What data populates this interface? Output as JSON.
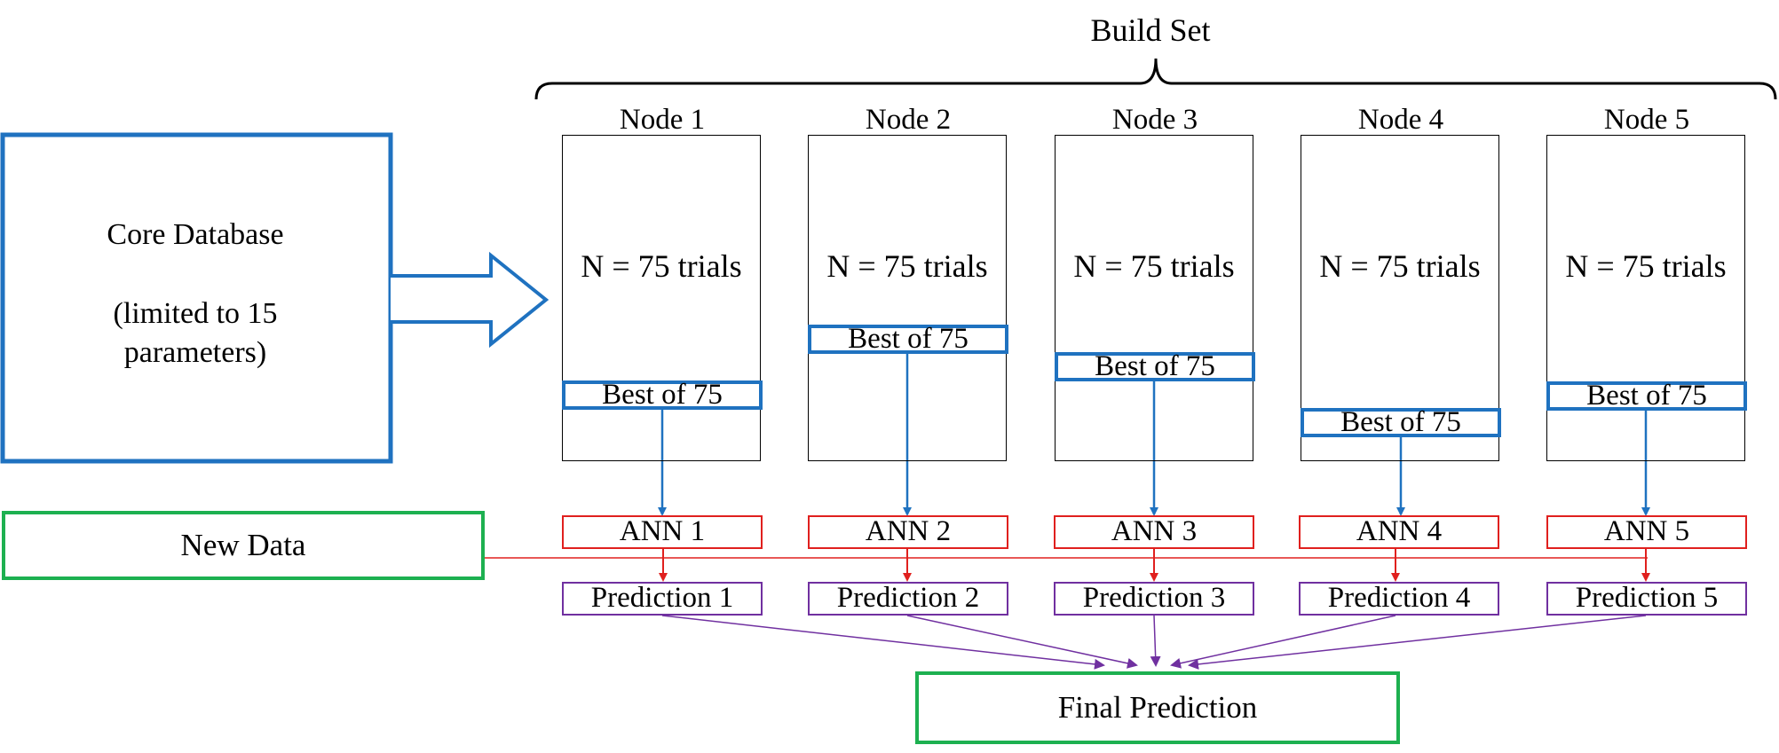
{
  "build_set": {
    "label": "Build Set"
  },
  "core_database": {
    "title": "Core Database",
    "subtitle": "(limited to 15 parameters)"
  },
  "new_data": {
    "label": "New Data"
  },
  "final_prediction": {
    "label": "Final Prediction"
  },
  "nodes": [
    {
      "title": "Node 1",
      "trials": "N = 75 trials",
      "best": "Best of 75",
      "ann": "ANN 1",
      "prediction": "Prediction 1"
    },
    {
      "title": "Node 2",
      "trials": "N = 75 trials",
      "best": "Best of 75",
      "ann": "ANN 2",
      "prediction": "Prediction 2"
    },
    {
      "title": "Node 3",
      "trials": "N = 75 trials",
      "best": "Best of 75",
      "ann": "ANN 3",
      "prediction": "Prediction 3"
    },
    {
      "title": "Node 4",
      "trials": "N = 75 trials",
      "best": "Best of 75",
      "ann": "ANN 4",
      "prediction": "Prediction 4"
    },
    {
      "title": "Node 5",
      "trials": "N = 75 trials",
      "best": "Best of 75",
      "ann": "ANN 5",
      "prediction": "Prediction 5"
    }
  ],
  "colors": {
    "core_border": "#1f72c0",
    "best_border": "#1f72c0",
    "ann_border": "#e0201e",
    "prediction_border": "#7030a0",
    "green_border": "#1db050",
    "new_data_line": "#e0201e",
    "node_to_ann_arrow": "#1f72c0",
    "prediction_arrow": "#7030a0"
  }
}
